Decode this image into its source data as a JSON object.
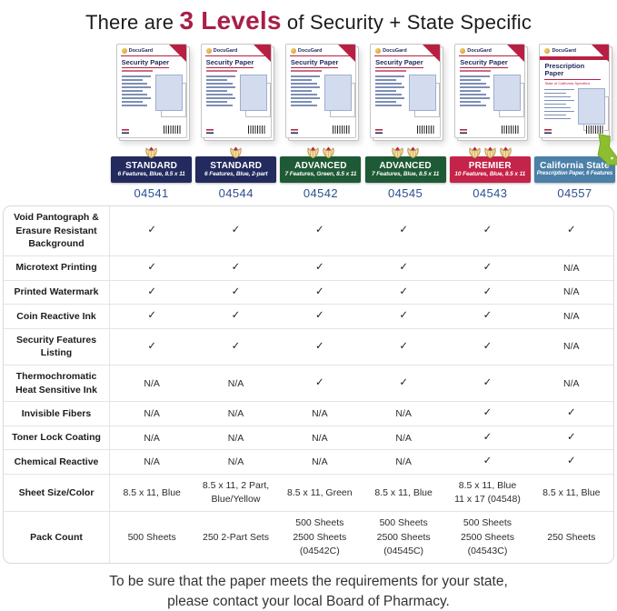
{
  "title": {
    "prefix": "There are ",
    "highlight": "3 Levels",
    "suffix": " of Security + State Specific"
  },
  "brand": "DocuGard",
  "colors": {
    "title_highlight": "#a91e47",
    "standard_navy": "#232a5e",
    "advanced_green": "#1e5a36",
    "premier_red": "#c42449",
    "california_blue": "#4b80a8",
    "code_blue": "#2d4f91",
    "california_green": "#8cbe2f",
    "shield_gold": "#f3dc9e"
  },
  "products": [
    {
      "code": "04541",
      "box_title": "Security Paper",
      "shields": 1,
      "banner_title": "STANDARD",
      "banner_subtitle": "6 Features, Blue, 8.5 x 11",
      "banner_color": "#232a5e",
      "california": false
    },
    {
      "code": "04544",
      "box_title": "Security Paper",
      "shields": 1,
      "banner_title": "STANDARD",
      "banner_subtitle": "6 Features, Blue, 2-part",
      "banner_color": "#232a5e",
      "california": false
    },
    {
      "code": "04542",
      "box_title": "Security Paper",
      "shields": 2,
      "banner_title": "ADVANCED",
      "banner_subtitle": "7 Features, Green, 8.5 x 11",
      "banner_color": "#1e5a36",
      "california": false
    },
    {
      "code": "04545",
      "box_title": "Security Paper",
      "shields": 2,
      "banner_title": "ADVANCED",
      "banner_subtitle": "7 Features, Blue, 8.5 x 11",
      "banner_color": "#1e5a36",
      "california": false
    },
    {
      "code": "04543",
      "box_title": "Security Paper",
      "shields": 3,
      "banner_title": "PREMIER",
      "banner_subtitle": "10 Features, Blue, 8.5 x 11",
      "banner_color": "#c42449",
      "california": false
    },
    {
      "code": "04557",
      "box_title": "Prescription Paper",
      "box_subtitle": "State of California Specified",
      "shields": 0,
      "banner_title": "California State",
      "banner_subtitle": "Prescription Paper, 6 Features",
      "banner_color": "#4b80a8",
      "california": true
    }
  ],
  "chart_data": {
    "type": "table",
    "title": "There are 3 Levels of Security + State Specific",
    "columns": [
      "04541",
      "04544",
      "04542",
      "04545",
      "04543",
      "04557"
    ],
    "column_levels": [
      "STANDARD",
      "STANDARD",
      "ADVANCED",
      "ADVANCED",
      "PREMIER",
      "California State"
    ],
    "rows": [
      {
        "label": "Void Pantograph & Erasure Resistant Background",
        "values": [
          "✓",
          "✓",
          "✓",
          "✓",
          "✓",
          "✓"
        ]
      },
      {
        "label": "Microtext Printing",
        "values": [
          "✓",
          "✓",
          "✓",
          "✓",
          "✓",
          "N/A"
        ]
      },
      {
        "label": "Printed Watermark",
        "values": [
          "✓",
          "✓",
          "✓",
          "✓",
          "✓",
          "N/A"
        ]
      },
      {
        "label": "Coin Reactive Ink",
        "values": [
          "✓",
          "✓",
          "✓",
          "✓",
          "✓",
          "N/A"
        ]
      },
      {
        "label": "Security Features Listing",
        "values": [
          "✓",
          "✓",
          "✓",
          "✓",
          "✓",
          "N/A"
        ]
      },
      {
        "label": "Thermochromatic Heat Sensitive Ink",
        "values": [
          "N/A",
          "N/A",
          "✓",
          "✓",
          "✓",
          "N/A"
        ]
      },
      {
        "label": "Invisible Fibers",
        "values": [
          "N/A",
          "N/A",
          "N/A",
          "N/A",
          "✓",
          "✓"
        ]
      },
      {
        "label": "Toner Lock Coating",
        "values": [
          "N/A",
          "N/A",
          "N/A",
          "N/A",
          "✓",
          "✓"
        ]
      },
      {
        "label": "Chemical Reactive",
        "values": [
          "N/A",
          "N/A",
          "N/A",
          "N/A",
          "✓",
          "✓"
        ]
      },
      {
        "label": "Sheet Size/Color",
        "values": [
          [
            "8.5 x 11, Blue"
          ],
          [
            "8.5 x 11, 2 Part,",
            "Blue/Yellow"
          ],
          [
            "8.5 x 11, Green"
          ],
          [
            "8.5 x 11, Blue"
          ],
          [
            "8.5 x 11, Blue",
            "11 x 17 (04548)"
          ],
          [
            "8.5 x 11, Blue"
          ]
        ]
      },
      {
        "label": "Pack Count",
        "values": [
          [
            "500 Sheets"
          ],
          [
            "250 2-Part Sets"
          ],
          [
            "500 Sheets",
            "2500 Sheets",
            "(04542C)"
          ],
          [
            "500 Sheets",
            "2500 Sheets",
            "(04545C)"
          ],
          [
            "500 Sheets",
            "2500 Sheets",
            "(04543C)"
          ],
          [
            "250 Sheets"
          ]
        ]
      }
    ]
  },
  "footer": {
    "line1": "To be sure that the paper meets the requirements for your state,",
    "line2": "please contact your local Board of Pharmacy."
  }
}
